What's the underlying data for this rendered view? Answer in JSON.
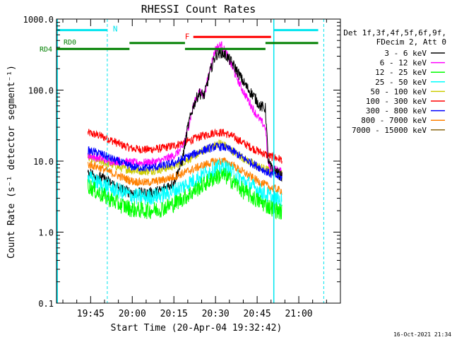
{
  "chart_data": {
    "type": "line",
    "title": "RHESSI Count Rates",
    "xlabel": "Start Time (20-Apr-04 19:32:42)",
    "ylabel": "Count Rate (s⁻¹ detector segment⁻¹)",
    "y_scale": "log",
    "ylim": [
      0.1,
      1000
    ],
    "xlim": [
      "19:32:42",
      "21:15:00"
    ],
    "y_tick_labels": [
      "0.1",
      "1.0",
      "10.0",
      "100.0",
      "1000.0"
    ],
    "x_tick_labels": [
      "19:45",
      "20:00",
      "20:15",
      "20:30",
      "20:45",
      "21:00"
    ],
    "x_ticks": [
      "19:45",
      "20:00",
      "20:15",
      "20:30",
      "20:45",
      "21:00"
    ],
    "timestamp": "16-Oct-2021 21:34",
    "legend_header": [
      "Det 1f,3f,4f,5f,6f,9f,",
      "FDecim 2, Att 0"
    ],
    "legend_placement": "right",
    "flags": {
      "N_label": "N",
      "F_label": "F",
      "RD0_label": "RD0",
      "RD4_label": "RD4"
    },
    "night_boundaries": [
      "19:33",
      "19:51",
      "20:51",
      "21:09"
    ],
    "series": [
      {
        "name": "3 - 6 keV",
        "color": "#000000",
        "points": [
          [
            "19:44",
            7
          ],
          [
            "19:48",
            6
          ],
          [
            "19:52",
            5
          ],
          [
            "19:56",
            4
          ],
          [
            "20:00",
            3.6
          ],
          [
            "20:05",
            3.5
          ],
          [
            "20:10",
            3.8
          ],
          [
            "20:15",
            5
          ],
          [
            "20:18",
            10
          ],
          [
            "20:20",
            30
          ],
          [
            "20:22",
            60
          ],
          [
            "20:24",
            90
          ],
          [
            "20:26",
            85
          ],
          [
            "20:28",
            180
          ],
          [
            "20:30",
            310
          ],
          [
            "20:32",
            340
          ],
          [
            "20:34",
            300
          ],
          [
            "20:36",
            240
          ],
          [
            "20:38",
            180
          ],
          [
            "20:40",
            130
          ],
          [
            "20:42",
            100
          ],
          [
            "20:44",
            80
          ],
          [
            "20:46",
            60
          ],
          [
            "20:48",
            55
          ],
          [
            "20:49",
            10
          ],
          [
            "20:50",
            8
          ],
          [
            "20:52",
            7
          ],
          [
            "20:54",
            6
          ]
        ]
      },
      {
        "name": "6 - 12 keV",
        "color": "#ff00ff",
        "points": [
          [
            "19:44",
            12
          ],
          [
            "19:48",
            11
          ],
          [
            "19:52",
            10
          ],
          [
            "19:56",
            10
          ],
          [
            "20:00",
            9.5
          ],
          [
            "20:05",
            9.5
          ],
          [
            "20:10",
            10
          ],
          [
            "20:15",
            12
          ],
          [
            "20:18",
            15
          ],
          [
            "20:20",
            28
          ],
          [
            "20:22",
            60
          ],
          [
            "20:24",
            95
          ],
          [
            "20:26",
            85
          ],
          [
            "20:28",
            200
          ],
          [
            "20:30",
            380
          ],
          [
            "20:32",
            440
          ],
          [
            "20:34",
            320
          ],
          [
            "20:36",
            210
          ],
          [
            "20:38",
            140
          ],
          [
            "20:40",
            95
          ],
          [
            "20:42",
            70
          ],
          [
            "20:44",
            50
          ],
          [
            "20:46",
            38
          ],
          [
            "20:48",
            30
          ],
          [
            "20:49",
            9
          ],
          [
            "20:50",
            8
          ],
          [
            "20:52",
            7.5
          ],
          [
            "20:54",
            7
          ]
        ]
      },
      {
        "name": "12 - 25 keV",
        "color": "#00ff00",
        "points": [
          [
            "19:44",
            4.6
          ],
          [
            "19:48",
            3.5
          ],
          [
            "19:52",
            2.9
          ],
          [
            "19:56",
            2.4
          ],
          [
            "20:00",
            2.1
          ],
          [
            "20:05",
            2.0
          ],
          [
            "20:10",
            2.1
          ],
          [
            "20:15",
            2.5
          ],
          [
            "20:20",
            3.3
          ],
          [
            "20:25",
            4.5
          ],
          [
            "20:30",
            6.0
          ],
          [
            "20:33",
            6.3
          ],
          [
            "20:36",
            5.3
          ],
          [
            "20:40",
            3.8
          ],
          [
            "20:45",
            2.8
          ],
          [
            "20:50",
            2.2
          ],
          [
            "20:54",
            1.9
          ]
        ]
      },
      {
        "name": "25 - 50 keV",
        "color": "#00ffff",
        "points": [
          [
            "19:44",
            5.8
          ],
          [
            "19:48",
            4.9
          ],
          [
            "19:52",
            4.2
          ],
          [
            "19:56",
            3.7
          ],
          [
            "20:00",
            3.2
          ],
          [
            "20:05",
            3.1
          ],
          [
            "20:10",
            3.3
          ],
          [
            "20:15",
            3.8
          ],
          [
            "20:20",
            4.8
          ],
          [
            "20:25",
            6.2
          ],
          [
            "20:30",
            7.9
          ],
          [
            "20:33",
            8.2
          ],
          [
            "20:36",
            7.0
          ],
          [
            "20:40",
            5.3
          ],
          [
            "20:45",
            4.0
          ],
          [
            "20:50",
            3.1
          ],
          [
            "20:54",
            2.7
          ]
        ]
      },
      {
        "name": "50 - 100 keV",
        "color": "#cccc00",
        "points": [
          [
            "19:44",
            11
          ],
          [
            "19:48",
            10
          ],
          [
            "19:52",
            9
          ],
          [
            "19:56",
            8
          ],
          [
            "20:00",
            7.4
          ],
          [
            "20:05",
            7.2
          ],
          [
            "20:10",
            7.6
          ],
          [
            "20:15",
            8.5
          ],
          [
            "20:20",
            10.5
          ],
          [
            "20:25",
            13.5
          ],
          [
            "20:30",
            17
          ],
          [
            "20:32",
            18
          ],
          [
            "20:36",
            14
          ],
          [
            "20:40",
            11
          ],
          [
            "20:45",
            8.5
          ],
          [
            "20:50",
            7.2
          ],
          [
            "20:54",
            6.5
          ]
        ]
      },
      {
        "name": "100 - 300 keV",
        "color": "#ff0000",
        "points": [
          [
            "19:44",
            25
          ],
          [
            "19:48",
            23
          ],
          [
            "19:52",
            20
          ],
          [
            "19:56",
            17
          ],
          [
            "20:00",
            15
          ],
          [
            "20:05",
            14.5
          ],
          [
            "20:10",
            15
          ],
          [
            "20:15",
            16.5
          ],
          [
            "20:20",
            19
          ],
          [
            "20:25",
            22.5
          ],
          [
            "20:30",
            25.5
          ],
          [
            "20:33",
            25
          ],
          [
            "20:36",
            22.5
          ],
          [
            "20:40",
            18
          ],
          [
            "20:45",
            14
          ],
          [
            "20:50",
            11.5
          ],
          [
            "20:54",
            10.5
          ]
        ]
      },
      {
        "name": "300 - 800 keV",
        "color": "#0000ff",
        "points": [
          [
            "19:44",
            14
          ],
          [
            "19:48",
            13
          ],
          [
            "19:52",
            11
          ],
          [
            "19:56",
            9.5
          ],
          [
            "20:00",
            8.3
          ],
          [
            "20:05",
            8.0
          ],
          [
            "20:10",
            8.4
          ],
          [
            "20:15",
            9.4
          ],
          [
            "20:20",
            11.5
          ],
          [
            "20:25",
            14
          ],
          [
            "20:30",
            16
          ],
          [
            "20:33",
            15.8
          ],
          [
            "20:36",
            14
          ],
          [
            "20:40",
            11
          ],
          [
            "20:45",
            8.5
          ],
          [
            "20:50",
            6.5
          ],
          [
            "20:54",
            5.8
          ]
        ]
      },
      {
        "name": "800 - 7000 keV",
        "color": "#ff8000",
        "points": [
          [
            "19:44",
            9
          ],
          [
            "19:48",
            8.2
          ],
          [
            "19:52",
            7
          ],
          [
            "19:56",
            6
          ],
          [
            "20:00",
            5.2
          ],
          [
            "20:05",
            5.0
          ],
          [
            "20:10",
            5.3
          ],
          [
            "20:15",
            6.0
          ],
          [
            "20:20",
            7.2
          ],
          [
            "20:25",
            8.6
          ],
          [
            "20:30",
            10
          ],
          [
            "20:33",
            10
          ],
          [
            "20:36",
            8.8
          ],
          [
            "20:40",
            7
          ],
          [
            "20:45",
            5.3
          ],
          [
            "20:50",
            4.2
          ],
          [
            "20:54",
            3.8
          ]
        ]
      },
      {
        "name": "7000 - 15000 keV",
        "color": "#8b6914",
        "points": []
      }
    ]
  }
}
